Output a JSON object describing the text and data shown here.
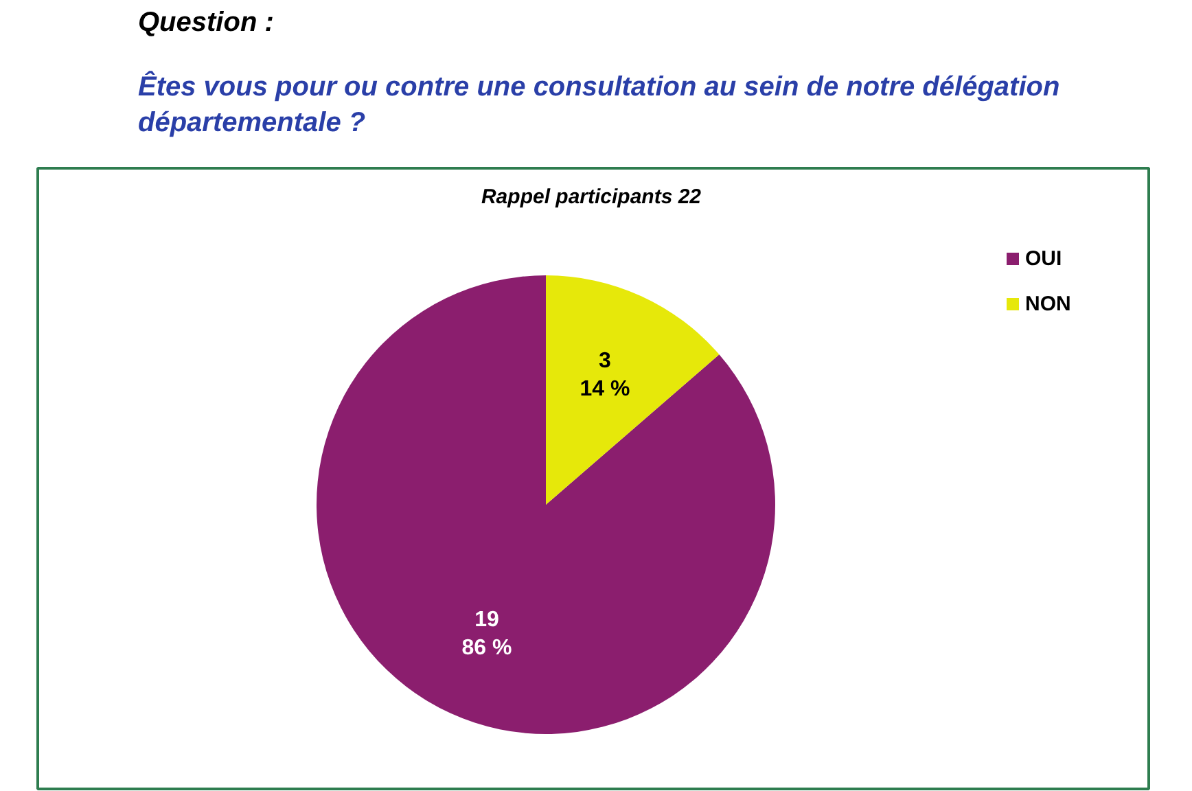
{
  "chart_data": {
    "type": "pie",
    "title": "Question :",
    "subtitle": "Êtes vous pour ou contre une consultation au sein de notre délégation départementale ?",
    "annotations": [
      "Rappel participants 22"
    ],
    "categories": [
      "OUI",
      "NON"
    ],
    "values": [
      19,
      3
    ],
    "colors": [
      "#8b1e6e",
      "#e6e80a"
    ],
    "value_labels": [
      "19\n86 %",
      "3\n14 %"
    ],
    "legend": "top right"
  }
}
